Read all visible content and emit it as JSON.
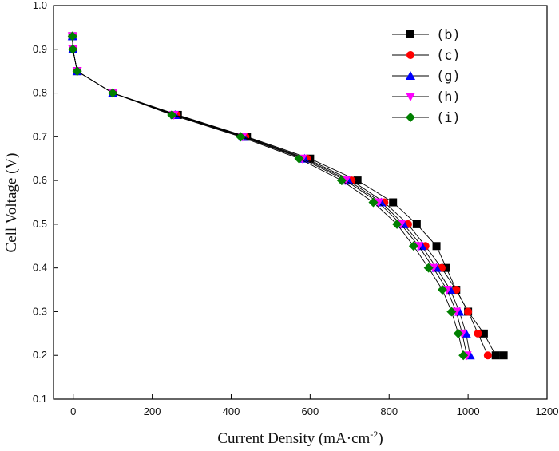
{
  "chart_data": {
    "type": "line",
    "title": "",
    "xlabel": "Current Density (mA·cm",
    "xlabel_sup": "-2",
    "xlabel_close": ")",
    "ylabel": "Cell Voltage (V)",
    "xlim": [
      -50,
      1200
    ],
    "ylim": [
      0.1,
      1.0
    ],
    "xticks": [
      0,
      200,
      400,
      600,
      800,
      1000,
      1200
    ],
    "yticks": [
      0.1,
      0.2,
      0.3,
      0.4,
      0.5,
      0.6,
      0.7,
      0.8,
      0.9,
      1.0
    ],
    "xtick_labels": [
      "0",
      "200",
      "400",
      "600",
      "800",
      "1000",
      "1200"
    ],
    "ytick_labels": [
      "0.1",
      "0.2",
      "0.3",
      "0.4",
      "0.5",
      "0.6",
      "0.7",
      "0.8",
      "0.9",
      "1.0"
    ],
    "grid": false,
    "legend_position": "top-right",
    "series": [
      {
        "name": "(b)",
        "color": "#000000",
        "marker": "square",
        "x": [
          -2,
          -1,
          10,
          100,
          265,
          440,
          600,
          720,
          810,
          870,
          920,
          945,
          970,
          1000,
          1040,
          1070,
          1090
        ],
        "y": [
          0.93,
          0.9,
          0.85,
          0.8,
          0.75,
          0.7,
          0.65,
          0.6,
          0.55,
          0.5,
          0.45,
          0.4,
          0.35,
          0.3,
          0.25,
          0.2,
          0.2
        ]
      },
      {
        "name": "(c)",
        "color": "#ff0000",
        "marker": "circle",
        "x": [
          -2,
          -1,
          10,
          100,
          262,
          436,
          592,
          705,
          788,
          848,
          892,
          933,
          970,
          1000,
          1025,
          1050
        ],
        "y": [
          0.93,
          0.9,
          0.85,
          0.8,
          0.75,
          0.7,
          0.65,
          0.6,
          0.55,
          0.5,
          0.45,
          0.4,
          0.35,
          0.3,
          0.25,
          0.2
        ]
      },
      {
        "name": "(g)",
        "color": "#0000ff",
        "marker": "triangle-up",
        "x": [
          -2,
          -1,
          10,
          100,
          258,
          432,
          586,
          697,
          780,
          837,
          883,
          920,
          955,
          978,
          995,
          1005
        ],
        "y": [
          0.93,
          0.9,
          0.85,
          0.8,
          0.75,
          0.7,
          0.65,
          0.6,
          0.55,
          0.5,
          0.45,
          0.4,
          0.35,
          0.3,
          0.25,
          0.2
        ]
      },
      {
        "name": "(h)",
        "color": "#ff00ff",
        "marker": "triangle-down",
        "x": [
          -2,
          -1,
          10,
          100,
          255,
          429,
          580,
          690,
          773,
          830,
          875,
          912,
          947,
          970,
          985,
          997
        ],
        "y": [
          0.93,
          0.9,
          0.85,
          0.8,
          0.75,
          0.7,
          0.65,
          0.6,
          0.55,
          0.5,
          0.45,
          0.4,
          0.35,
          0.3,
          0.25,
          0.2
        ]
      },
      {
        "name": "(i)",
        "color": "#008000",
        "marker": "diamond",
        "x": [
          -2,
          -1,
          10,
          100,
          250,
          424,
          572,
          680,
          760,
          820,
          862,
          900,
          935,
          958,
          975,
          988
        ],
        "y": [
          0.93,
          0.9,
          0.85,
          0.8,
          0.75,
          0.7,
          0.65,
          0.6,
          0.55,
          0.5,
          0.45,
          0.4,
          0.35,
          0.3,
          0.25,
          0.2
        ]
      }
    ]
  }
}
